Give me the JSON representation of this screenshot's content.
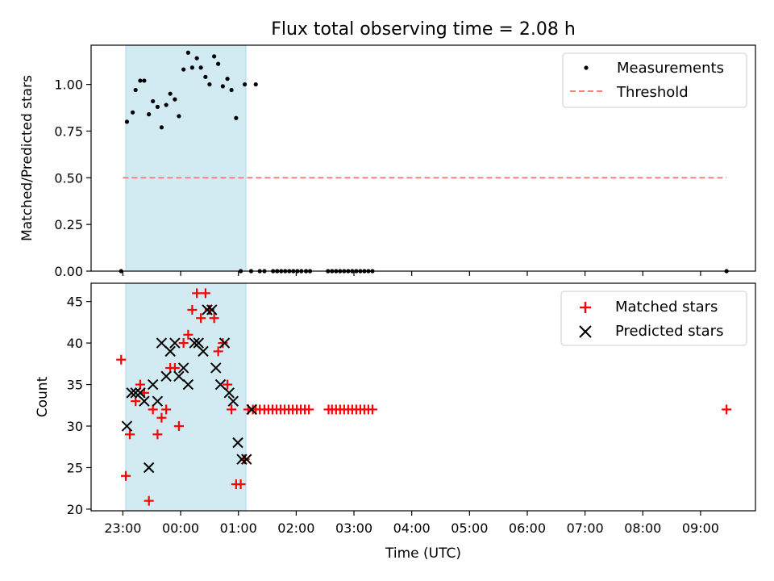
{
  "figure_title": "Flux total observing time = 2.08 h",
  "colors": {
    "measurement": "#000000",
    "threshold": "#ff7f7f",
    "matched": "#ff0000",
    "predicted": "#000000",
    "shade": "#add8e6"
  },
  "chart_data": [
    {
      "type": "scatter",
      "ylabel": "Matched/Predicted stars",
      "xlabel": "",
      "x_unit": "hours since 23:00 UTC",
      "xlim": [
        -0.55,
        10.95
      ],
      "ylim": [
        0,
        1.21
      ],
      "yticks": [
        0.0,
        0.25,
        0.5,
        0.75,
        1.0
      ],
      "ytick_labels": [
        "0.00",
        "0.25",
        "0.50",
        "0.75",
        "1.00"
      ],
      "shaded_span": [
        0.05,
        2.13
      ],
      "legend_position": "top-right",
      "legend": [
        "Measurements",
        "Threshold"
      ],
      "threshold": {
        "name": "Threshold",
        "value": 0.5,
        "x_range": [
          0.0,
          10.45
        ]
      },
      "series": [
        {
          "name": "Measurements",
          "x": [
            -0.03,
            0.07,
            0.17,
            0.22,
            0.3,
            0.37,
            0.45,
            0.52,
            0.6,
            0.67,
            0.75,
            0.82,
            0.9,
            0.97,
            1.05,
            1.13,
            1.2,
            1.28,
            1.35,
            1.43,
            1.5,
            1.58,
            1.65,
            1.73,
            1.81,
            1.88,
            1.96,
            2.04,
            2.11,
            2.22,
            2.3,
            2.37,
            2.45,
            2.6,
            2.67,
            2.74,
            2.81,
            2.88,
            2.95,
            3.02,
            3.09,
            3.17,
            3.24,
            3.55,
            3.62,
            3.69,
            3.76,
            3.83,
            3.9,
            3.97,
            4.04,
            4.11,
            4.18,
            4.25,
            4.32,
            10.45
          ],
          "y": [
            0.0,
            0.8,
            0.85,
            0.97,
            1.02,
            1.02,
            0.84,
            0.91,
            0.88,
            0.77,
            0.89,
            0.95,
            0.92,
            0.83,
            1.08,
            1.17,
            1.09,
            1.14,
            1.09,
            1.04,
            1.0,
            1.15,
            1.11,
            0.99,
            1.03,
            0.97,
            0.82,
            0.0,
            1.0,
            0.0,
            1.0,
            0.0,
            0.0,
            0.0,
            0.0,
            0.0,
            0.0,
            0.0,
            0.0,
            0.0,
            0.0,
            0.0,
            0.0,
            0.0,
            0.0,
            0.0,
            0.0,
            0.0,
            0.0,
            0.0,
            0.0,
            0.0,
            0.0,
            0.0,
            0.0,
            0.0
          ]
        }
      ]
    },
    {
      "type": "scatter",
      "ylabel": "Count",
      "xlabel": "Time (UTC)",
      "x_unit": "hours since 23:00 UTC",
      "xlim": [
        -0.55,
        10.95
      ],
      "ylim": [
        19.8,
        47.2
      ],
      "yticks": [
        20,
        25,
        30,
        35,
        40,
        45
      ],
      "ytick_labels": [
        "20",
        "25",
        "30",
        "35",
        "40",
        "45"
      ],
      "xticks": [
        0,
        1,
        2,
        3,
        4,
        5,
        6,
        7,
        8,
        9,
        10
      ],
      "xtick_labels": [
        "23:00",
        "00:00",
        "01:00",
        "02:00",
        "03:00",
        "04:00",
        "05:00",
        "06:00",
        "07:00",
        "08:00",
        "09:00"
      ],
      "shaded_span": [
        0.05,
        2.13
      ],
      "legend_position": "top-right",
      "legend": [
        "Matched stars",
        "Predicted stars"
      ],
      "series": [
        {
          "name": "Matched stars",
          "marker": "plus",
          "x": [
            -0.03,
            0.05,
            0.12,
            0.22,
            0.3,
            0.37,
            0.45,
            0.52,
            0.6,
            0.67,
            0.75,
            0.82,
            0.9,
            0.97,
            1.05,
            1.13,
            1.2,
            1.28,
            1.35,
            1.43,
            1.5,
            1.58,
            1.65,
            1.73,
            1.81,
            1.88,
            1.96,
            2.04,
            2.11,
            2.17,
            2.25,
            2.3,
            2.37,
            2.45,
            2.52,
            2.59,
            2.66,
            2.73,
            2.8,
            2.87,
            2.94,
            3.01,
            3.08,
            3.15,
            3.22,
            3.56,
            3.62,
            3.69,
            3.76,
            3.83,
            3.9,
            3.97,
            4.04,
            4.11,
            4.18,
            4.25,
            4.32,
            10.45
          ],
          "y": [
            38,
            24,
            29,
            33,
            35,
            34,
            21,
            32,
            29,
            31,
            32,
            37,
            37,
            30,
            40,
            41,
            44,
            46,
            43,
            46,
            44,
            43,
            39,
            40,
            35,
            32,
            23,
            23,
            26,
            32,
            32,
            32,
            32,
            32,
            32,
            32,
            32,
            32,
            32,
            32,
            32,
            32,
            32,
            32,
            32,
            32,
            32,
            32,
            32,
            32,
            32,
            32,
            32,
            32,
            32,
            32,
            32,
            32
          ]
        },
        {
          "name": "Predicted stars",
          "marker": "x",
          "x": [
            0.07,
            0.15,
            0.22,
            0.3,
            0.37,
            0.45,
            0.52,
            0.6,
            0.67,
            0.75,
            0.82,
            0.9,
            0.97,
            1.05,
            1.13,
            1.24,
            1.31,
            1.39,
            1.46,
            1.54,
            1.61,
            1.69,
            1.76,
            1.84,
            1.91,
            1.99,
            2.06,
            2.14,
            2.23
          ],
          "y": [
            30,
            34,
            34,
            34,
            33,
            25,
            35,
            33,
            40,
            36,
            39,
            40,
            36,
            37,
            35,
            40,
            40,
            39,
            44,
            44,
            37,
            35,
            40,
            34,
            33,
            28,
            26,
            26,
            32
          ]
        }
      ]
    }
  ]
}
